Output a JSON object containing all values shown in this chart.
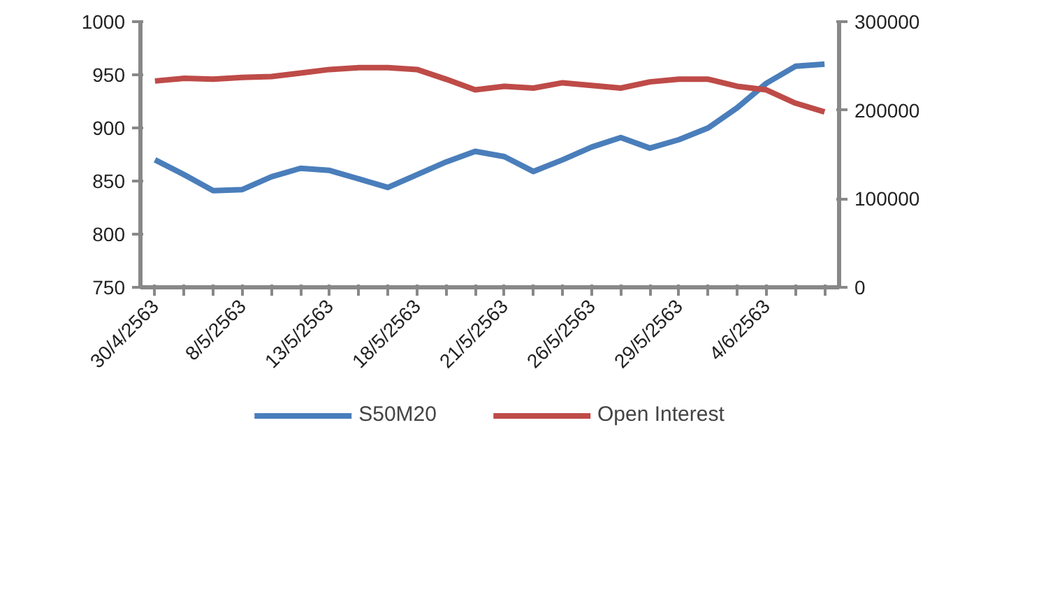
{
  "chart_data": {
    "type": "line",
    "categories": [
      "30/4/2563",
      null,
      null,
      "8/5/2563",
      null,
      null,
      "13/5/2563",
      null,
      null,
      "18/5/2563",
      null,
      null,
      "21/5/2563",
      null,
      null,
      "26/5/2563",
      null,
      null,
      "29/5/2563",
      null,
      null,
      "4/6/2563",
      null,
      null
    ],
    "series": [
      {
        "name": "S50M20",
        "color": "#4a7ebb",
        "values": [
          870,
          856,
          841,
          842,
          854,
          862,
          860,
          852,
          844,
          856,
          868,
          878,
          873,
          859,
          870,
          882,
          891,
          881,
          889,
          900,
          919,
          942,
          958,
          960
        ]
      },
      {
        "name": "Open Interest",
        "color": "#be4b48",
        "axis": "y2",
        "values": [
          233000,
          236000,
          235000,
          237000,
          238000,
          242000,
          246000,
          248000,
          248000,
          246000,
          235000,
          223000,
          227000,
          225000,
          231000,
          228000,
          225000,
          232000,
          235000,
          235000,
          227000,
          223000,
          208000,
          198000
        ]
      }
    ],
    "ylim": [
      750,
      1000
    ],
    "yticks": [
      750,
      800,
      850,
      900,
      950,
      1000
    ],
    "y2lim": [
      0,
      300000
    ],
    "y2ticks": [
      0,
      100000,
      200000,
      300000
    ],
    "grid": false,
    "legend": "bottom",
    "marker": "none",
    "line_style": "solid"
  }
}
